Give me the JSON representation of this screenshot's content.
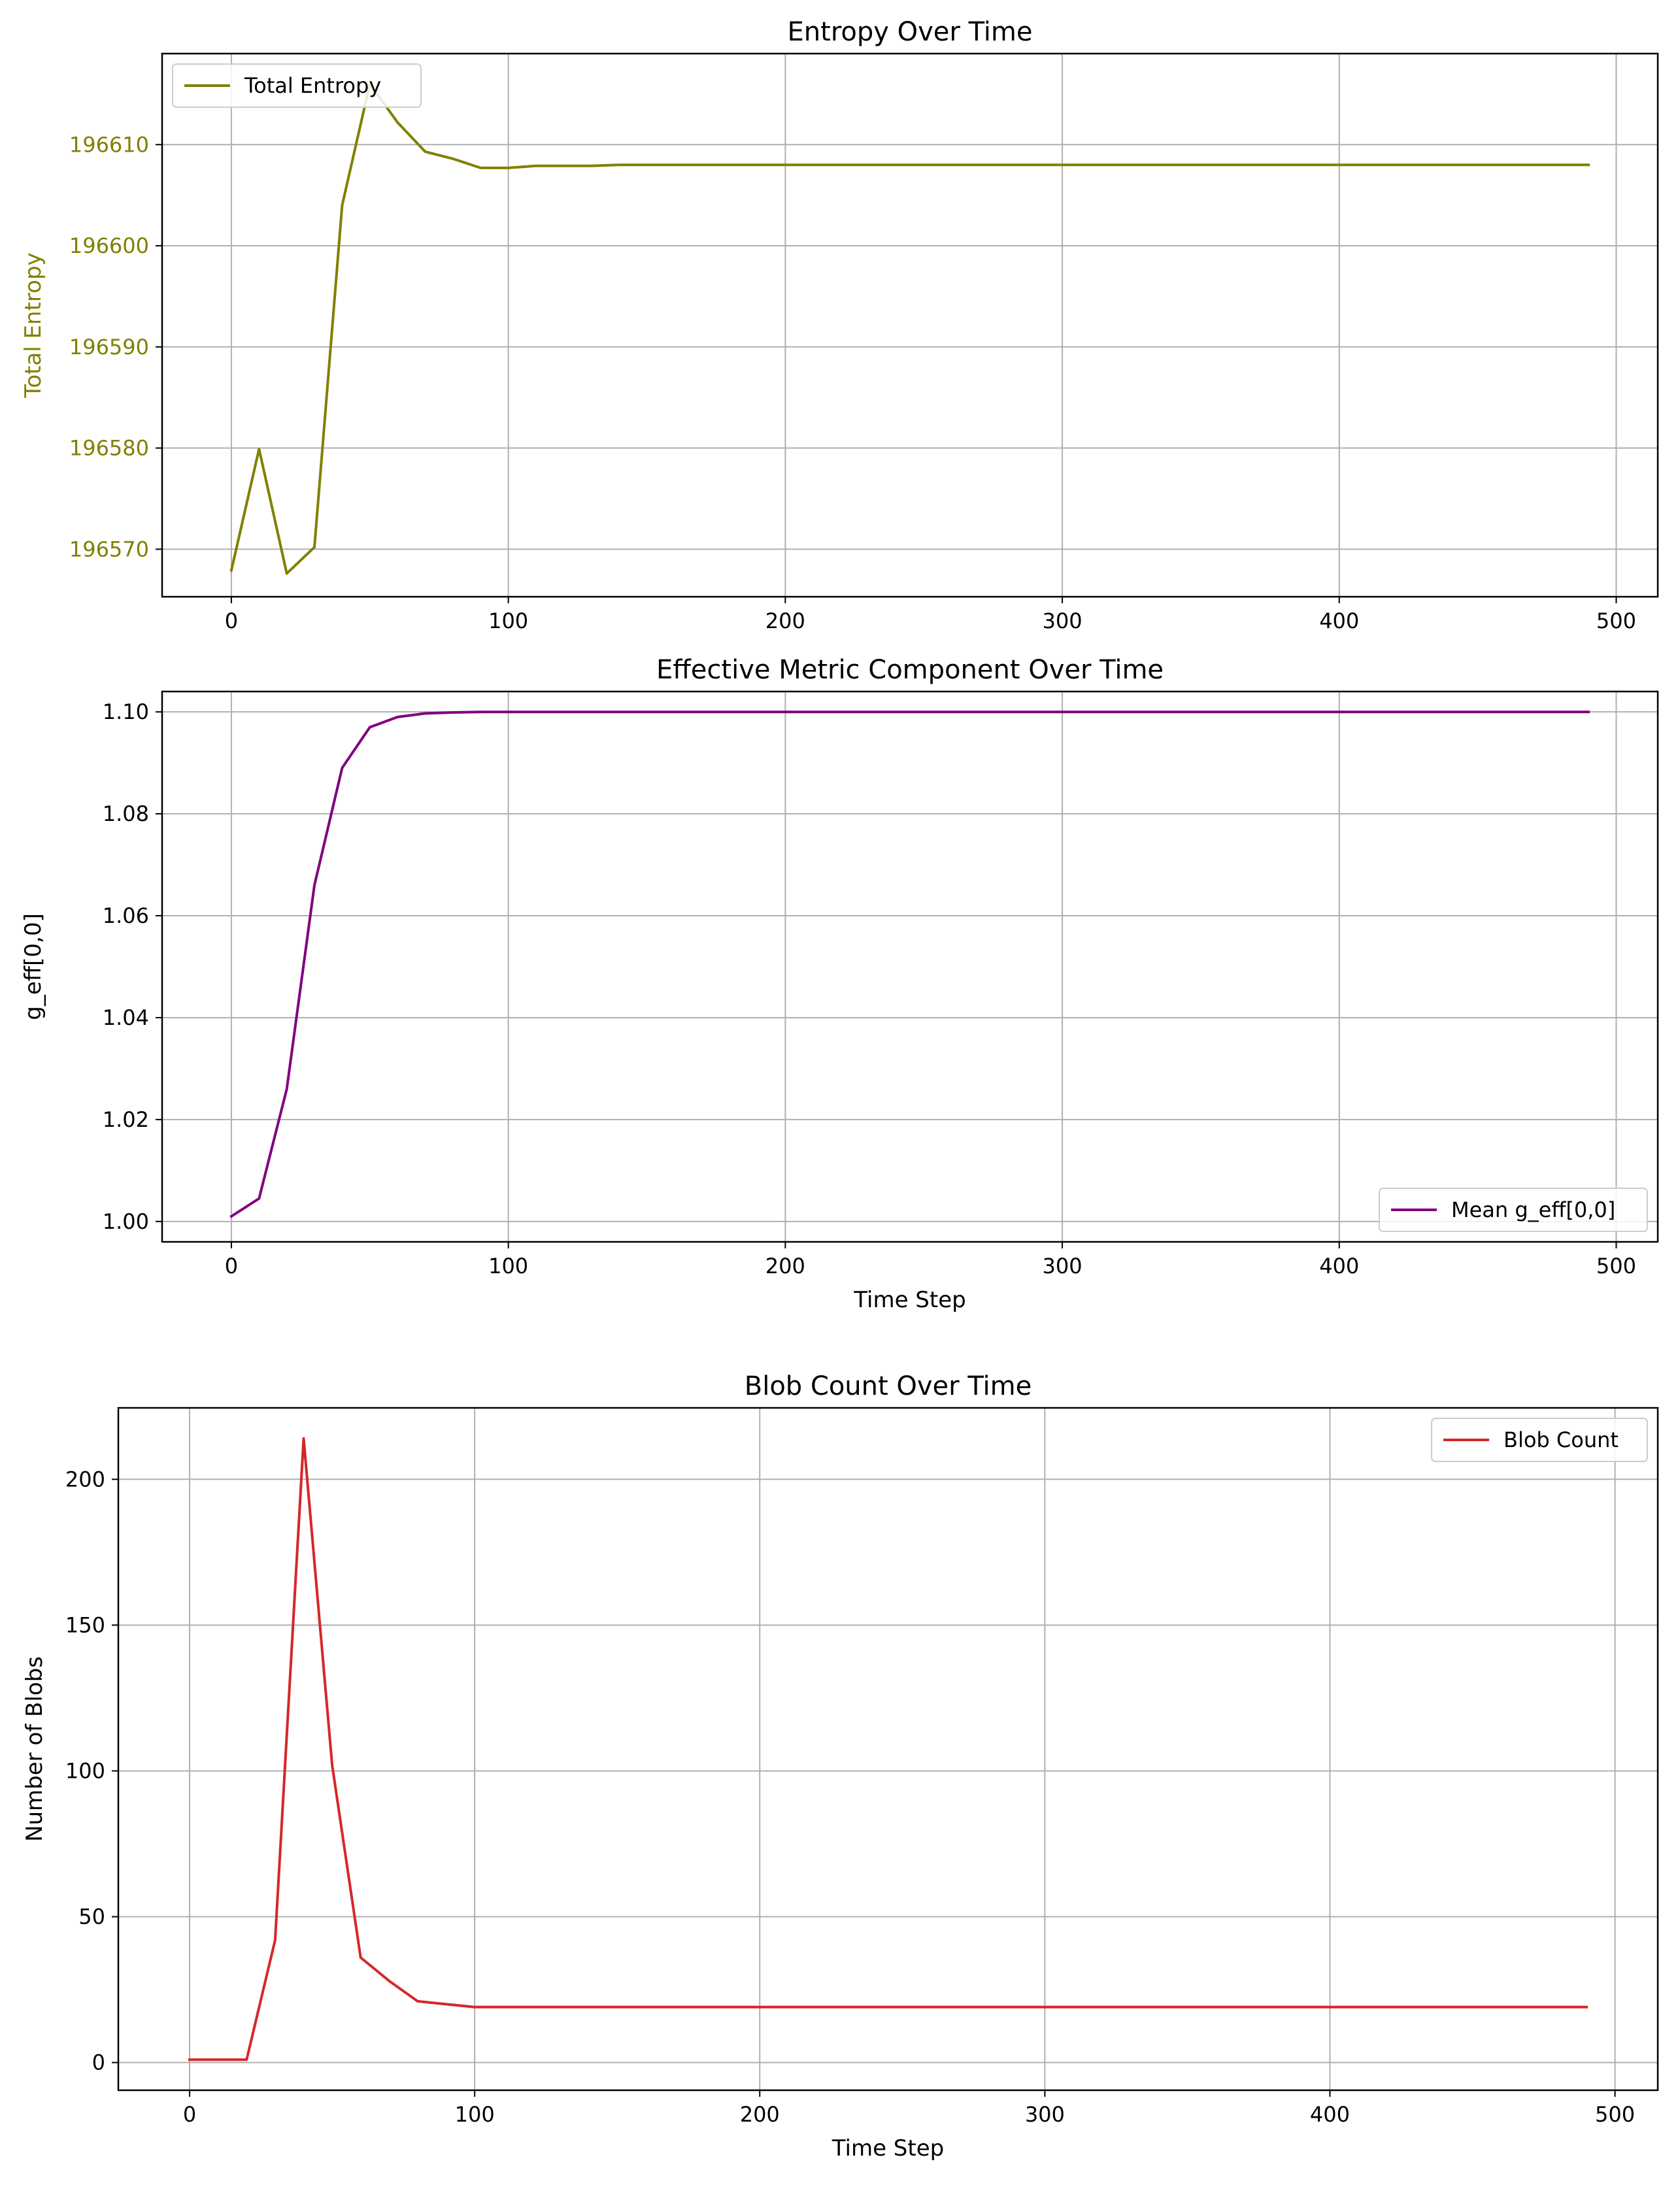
{
  "chart_data": [
    {
      "type": "line",
      "title": "Entropy Over Time",
      "xlabel": "",
      "ylabel": "Total Entropy",
      "xlim": [
        -25,
        515
      ],
      "ylim": [
        196565.3,
        196619.0
      ],
      "xticks": [
        0,
        100,
        200,
        300,
        400,
        500
      ],
      "yticks": [
        196570,
        196580,
        196590,
        196600,
        196610
      ],
      "grid": true,
      "legend": "top-left",
      "axis_color": "#808000",
      "series": [
        {
          "name": "Total Entropy",
          "color": "#808000",
          "x": [
            0,
            10,
            20,
            30,
            40,
            50,
            60,
            70,
            80,
            90,
            100,
            110,
            120,
            130,
            140,
            150,
            200,
            250,
            300,
            350,
            400,
            450,
            490
          ],
          "y": [
            196567.9,
            196579.9,
            196567.6,
            196570.2,
            196604.0,
            196616.0,
            196612.2,
            196609.3,
            196608.6,
            196607.7,
            196607.7,
            196607.9,
            196607.9,
            196607.9,
            196608.0,
            196608.0,
            196608.0,
            196608.0,
            196608.0,
            196608.0,
            196608.0,
            196608.0,
            196608.0
          ]
        }
      ]
    },
    {
      "type": "line",
      "title": "Effective Metric Component Over Time",
      "xlabel": "Time Step",
      "ylabel": "g_eff[0,0]",
      "xlim": [
        -25,
        515
      ],
      "ylim": [
        0.996,
        1.104
      ],
      "xticks": [
        0,
        100,
        200,
        300,
        400,
        500
      ],
      "yticks": [
        "1.00",
        "1.02",
        "1.04",
        "1.06",
        "1.08",
        "1.10"
      ],
      "grid": true,
      "legend": "bottom-right",
      "series": [
        {
          "name": "Mean g_eff[0,0]",
          "color": "#800080",
          "x": [
            0,
            10,
            20,
            30,
            40,
            50,
            60,
            70,
            80,
            90,
            100,
            150,
            200,
            250,
            300,
            350,
            400,
            450,
            490
          ],
          "y": [
            1.001,
            1.0045,
            1.026,
            1.066,
            1.089,
            1.097,
            1.099,
            1.0997,
            1.0999,
            1.1,
            1.1,
            1.1,
            1.1,
            1.1,
            1.1,
            1.1,
            1.1,
            1.1,
            1.1
          ]
        }
      ]
    },
    {
      "type": "line",
      "title": "Blob Count Over Time",
      "xlabel": "Time Step",
      "ylabel": "Number of Blobs",
      "xlim": [
        -25,
        515
      ],
      "ylim": [
        -9.5,
        224.5
      ],
      "xticks": [
        0,
        100,
        200,
        300,
        400,
        500
      ],
      "yticks": [
        0,
        50,
        100,
        150,
        200
      ],
      "grid": true,
      "legend": "top-right",
      "series": [
        {
          "name": "Blob Count",
          "color": "#d62728",
          "x": [
            0,
            10,
            20,
            30,
            40,
            50,
            60,
            70,
            80,
            90,
            100,
            150,
            200,
            250,
            300,
            350,
            400,
            450,
            490
          ],
          "y": [
            1,
            1,
            1,
            42,
            214,
            102,
            36,
            28,
            21,
            20,
            19,
            19,
            19,
            19,
            19,
            19,
            19,
            19,
            19
          ]
        }
      ]
    }
  ]
}
